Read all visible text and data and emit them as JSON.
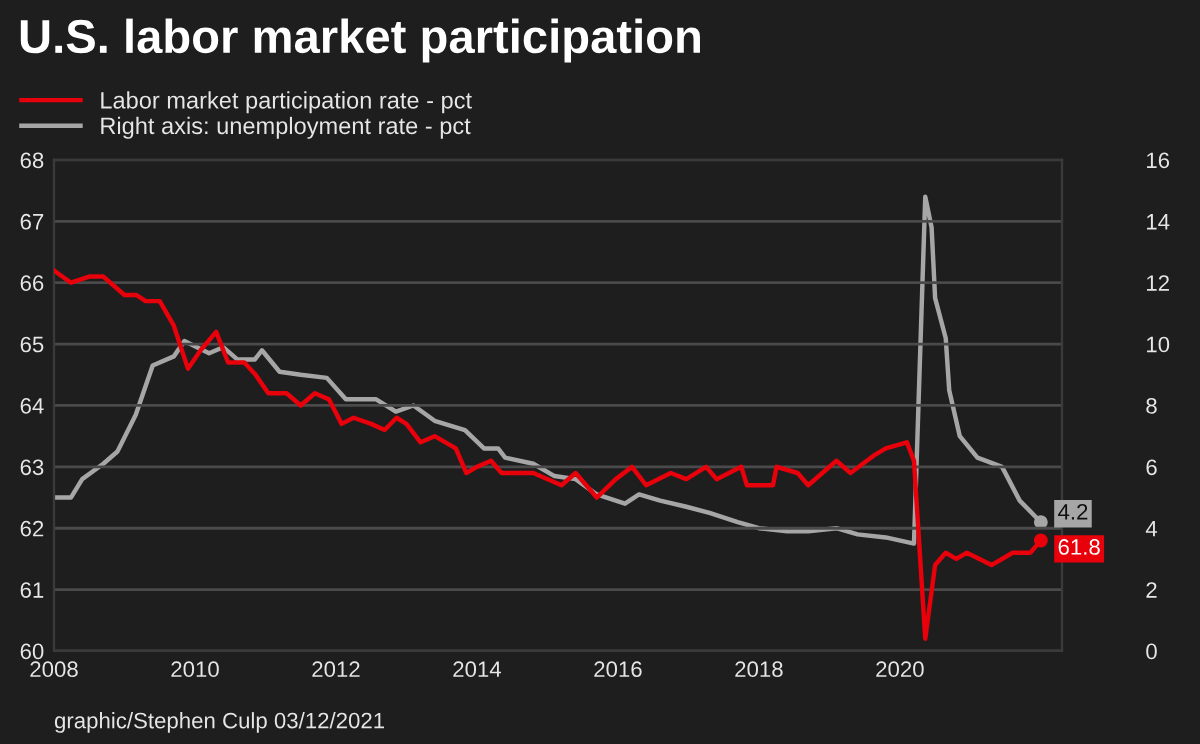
{
  "chart_data": {
    "type": "line",
    "title": "U.S. labor market participation",
    "x": [
      2008.0,
      2008.24,
      2008.5,
      2008.7,
      2009.0,
      2009.17,
      2009.3,
      2009.5,
      2009.7,
      2009.9,
      2010.08,
      2010.3,
      2010.47,
      2010.7,
      2010.86,
      2011.04,
      2011.3,
      2011.5,
      2011.7,
      2011.9,
      2012.08,
      2012.25,
      2012.5,
      2012.69,
      2012.86,
      2013.0,
      2013.2,
      2013.4,
      2013.7,
      2013.85,
      2014.0,
      2014.2,
      2014.35,
      2014.8,
      2015.2,
      2015.4,
      2015.7,
      2015.97,
      2016.2,
      2016.4,
      2016.75,
      2016.97,
      2017.25,
      2017.4,
      2017.75,
      2017.83,
      2018.2,
      2018.25,
      2018.55,
      2018.7,
      2019.1,
      2019.3,
      2019.65,
      2019.8,
      2020.1,
      2020.2,
      2020.36,
      2020.5,
      2020.65,
      2020.8,
      2020.95,
      2021.3,
      2021.6,
      2021.85,
      2022.0
    ],
    "series": [
      {
        "name": "Labor market participation rate - pct",
        "color": "#e8000b",
        "values": [
          66.2,
          66.0,
          66.1,
          66.1,
          65.8,
          65.8,
          65.7,
          65.7,
          65.3,
          64.6,
          64.9,
          65.2,
          64.7,
          64.7,
          64.5,
          64.2,
          64.2,
          64.0,
          64.2,
          64.1,
          63.7,
          63.8,
          63.7,
          63.6,
          63.8,
          63.7,
          63.4,
          63.5,
          63.3,
          62.9,
          63.0,
          63.1,
          62.9,
          62.9,
          62.7,
          62.9,
          62.5,
          62.8,
          63.0,
          62.7,
          62.9,
          62.8,
          63.0,
          62.8,
          63.0,
          62.7,
          62.7,
          63.0,
          62.9,
          62.7,
          63.1,
          62.9,
          63.2,
          63.3,
          63.4,
          63.1,
          60.2,
          61.4,
          61.6,
          61.5,
          61.6,
          61.4,
          61.6,
          61.6,
          61.8
        ],
        "value_labels": [
          null,
          null,
          null,
          null,
          null,
          null,
          null,
          null,
          null,
          null,
          null,
          null,
          null,
          null,
          null,
          null,
          null,
          null,
          null,
          null,
          null,
          null,
          null,
          null,
          null,
          null,
          null,
          null,
          null,
          null,
          null,
          null,
          null,
          null,
          null,
          null,
          null,
          null,
          null,
          null,
          null,
          null,
          null,
          null,
          null,
          null,
          null,
          null,
          null,
          null,
          null,
          null,
          null,
          null,
          null,
          null,
          null,
          null,
          null,
          null,
          null,
          null,
          null,
          null,
          "61.8"
        ]
      },
      {
        "name": "Right axis: unemployment rate - pct",
        "color": "#a6a6a6",
        "axis": "y2",
        "x": [
          2008.0,
          2008.24,
          2008.4,
          2008.7,
          2008.9,
          2009.16,
          2009.4,
          2009.7,
          2009.85,
          2010.2,
          2010.4,
          2010.6,
          2010.85,
          2010.95,
          2011.2,
          2011.5,
          2011.87,
          2012.14,
          2012.57,
          2012.85,
          2013.1,
          2013.4,
          2013.83,
          2014.1,
          2014.3,
          2014.4,
          2014.8,
          2015.1,
          2015.4,
          2015.7,
          2016.1,
          2016.3,
          2016.6,
          2016.97,
          2017.3,
          2017.7,
          2018.0,
          2018.4,
          2018.7,
          2019.1,
          2019.4,
          2019.8,
          2020.2,
          2020.36,
          2020.45,
          2020.5,
          2020.65,
          2020.7,
          2020.85,
          2021.1,
          2021.45,
          2021.7,
          2022.0
        ],
        "values": [
          5.0,
          5.0,
          5.6,
          6.1,
          6.5,
          7.7,
          9.3,
          9.6,
          10.1,
          9.7,
          9.9,
          9.5,
          9.5,
          9.8,
          9.1,
          9.0,
          8.9,
          8.2,
          8.2,
          7.8,
          8.0,
          7.5,
          7.2,
          6.6,
          6.6,
          6.3,
          6.1,
          5.7,
          5.6,
          5.1,
          4.8,
          5.1,
          4.9,
          4.7,
          4.5,
          4.2,
          4.0,
          3.9,
          3.9,
          4.0,
          3.8,
          3.7,
          3.5,
          14.8,
          13.8,
          11.5,
          10.2,
          8.5,
          7.0,
          6.3,
          6.0,
          4.9,
          4.2
        ],
        "value_labels": [
          null,
          null,
          null,
          null,
          null,
          null,
          null,
          null,
          null,
          null,
          null,
          null,
          null,
          null,
          null,
          null,
          null,
          null,
          null,
          null,
          null,
          null,
          null,
          null,
          null,
          null,
          null,
          null,
          null,
          null,
          null,
          null,
          null,
          null,
          null,
          null,
          null,
          null,
          null,
          null,
          null,
          null,
          null,
          null,
          null,
          null,
          null,
          null,
          null,
          null,
          null,
          null,
          "4.2"
        ]
      }
    ],
    "xlim": [
      2008,
      2022.3
    ],
    "xticks": [
      2008,
      2010,
      2012,
      2014,
      2016,
      2018,
      2020
    ],
    "ylim": [
      60,
      68
    ],
    "yticks": [
      60,
      61,
      62,
      63,
      64,
      65,
      66,
      67,
      68
    ],
    "y2lim": [
      0,
      16
    ],
    "y2ticks": [
      0,
      2,
      4,
      6,
      8,
      10,
      12,
      14,
      16
    ],
    "grid": "y",
    "legend": "top left",
    "marker": "none",
    "line_style": "solid",
    "annotations": [
      "graphic/Stephen Culp 03/12/2021"
    ]
  }
}
